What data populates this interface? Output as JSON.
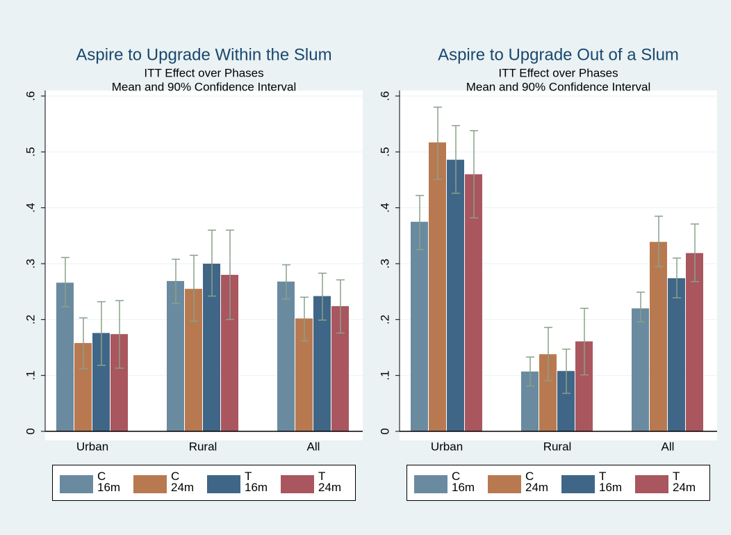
{
  "chart_data": [
    {
      "type": "bar",
      "title": "Aspire to Upgrade Within the Slum",
      "subtitle": [
        "ITT Effect over Phases",
        "Mean and 90% Confidence Interval"
      ],
      "categories": [
        "Urban",
        "Rural",
        "All"
      ],
      "series": [
        {
          "name": "C\n16m",
          "color": "#6a8aa0",
          "values": [
            0.266,
            0.269,
            0.268
          ],
          "lower": [
            0.223,
            0.229,
            0.237
          ],
          "upper": [
            0.311,
            0.308,
            0.298
          ]
        },
        {
          "name": "C\n24m",
          "color": "#b87950",
          "values": [
            0.158,
            0.255,
            0.202
          ],
          "lower": [
            0.112,
            0.197,
            0.162
          ],
          "upper": [
            0.203,
            0.315,
            0.24
          ]
        },
        {
          "name": "T\n16m",
          "color": "#3f6687",
          "values": [
            0.176,
            0.3,
            0.242
          ],
          "lower": [
            0.118,
            0.242,
            0.199
          ],
          "upper": [
            0.232,
            0.36,
            0.283
          ]
        },
        {
          "name": "T\n24m",
          "color": "#a9565f",
          "values": [
            0.174,
            0.28,
            0.224
          ],
          "lower": [
            0.113,
            0.2,
            0.176
          ],
          "upper": [
            0.234,
            0.36,
            0.271
          ]
        }
      ],
      "ylim": [
        0,
        0.6
      ],
      "yticks": [
        0,
        {
          "value": 0.1,
          "label": ".1"
        },
        {
          "value": 0.2,
          "label": ".2"
        },
        {
          "value": 0.3,
          "label": ".3"
        },
        {
          "value": 0.4,
          "label": ".4"
        },
        {
          "value": 0.5,
          "label": ".5"
        },
        {
          "value": 0.6,
          "label": ".6"
        }
      ],
      "grid": true
    },
    {
      "type": "bar",
      "title": "Aspire to Upgrade Out of a Slum",
      "subtitle": [
        "ITT Effect over Phases",
        "Mean and 90% Confidence Interval"
      ],
      "categories": [
        "Urban",
        "Rural",
        "All"
      ],
      "series": [
        {
          "name": "C\n16m",
          "color": "#6a8aa0",
          "values": [
            0.375,
            0.107,
            0.22
          ],
          "lower": [
            0.325,
            0.081,
            0.196
          ],
          "upper": [
            0.422,
            0.133,
            0.249
          ]
        },
        {
          "name": "C\n24m",
          "color": "#b87950",
          "values": [
            0.517,
            0.138,
            0.339
          ],
          "lower": [
            0.451,
            0.091,
            0.295
          ],
          "upper": [
            0.58,
            0.186,
            0.385
          ]
        },
        {
          "name": "T\n16m",
          "color": "#3f6687",
          "values": [
            0.486,
            0.108,
            0.274
          ],
          "lower": [
            0.426,
            0.068,
            0.239
          ],
          "upper": [
            0.547,
            0.147,
            0.31
          ]
        },
        {
          "name": "T\n24m",
          "color": "#a9565f",
          "values": [
            0.46,
            0.161,
            0.319
          ],
          "lower": [
            0.382,
            0.101,
            0.268
          ],
          "upper": [
            0.538,
            0.22,
            0.371
          ]
        }
      ],
      "ylim": [
        0,
        0.6
      ],
      "yticks": [
        0,
        {
          "value": 0.1,
          "label": ".1"
        },
        {
          "value": 0.2,
          "label": ".2"
        },
        {
          "value": 0.3,
          "label": ".3"
        },
        {
          "value": 0.4,
          "label": ".4"
        },
        {
          "value": 0.5,
          "label": ".5"
        },
        {
          "value": 0.6,
          "label": ".6"
        }
      ],
      "grid": true
    }
  ]
}
